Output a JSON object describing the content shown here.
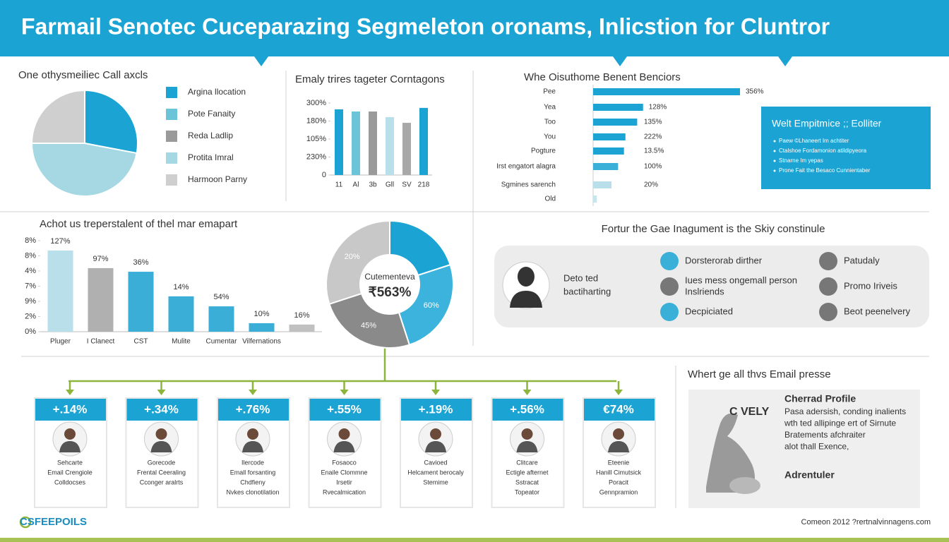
{
  "header": {
    "title": "Farmail Senotec Cuceparazing Segmeleton oronams, Inlicstion for Cluntror"
  },
  "chart_data": [
    {
      "type": "pie",
      "title": "One othysmeiliec Call axcls",
      "categories": [
        "Argina llocation",
        "Pote Fanaity",
        "Reda Ladlip",
        "Protita Imral",
        "Harmoon Parny"
      ],
      "values": [
        28,
        0,
        0,
        47,
        25
      ],
      "colors": [
        "#1ba3d4",
        "#6cc4d8",
        "#9a9a9a",
        "#a5d8e3",
        "#cfcfcf"
      ]
    },
    {
      "type": "bar",
      "title": "Emaly trires tageter Corntagons",
      "categories": [
        "11",
        "Al",
        "3b",
        "Gll",
        "SV",
        "218"
      ],
      "values": [
        3.65,
        3.53,
        3.53,
        3.22,
        2.9,
        3.73
      ],
      "colors": [
        "#1ba3d4",
        "#6cc4d8",
        "#9a9a9a",
        "#b9e0ea",
        "#a8a8a8",
        "#1ba3d4"
      ],
      "ylim": [
        0,
        4
      ],
      "yticks": [
        0,
        {
          "value": 1,
          "label": "230%"
        },
        {
          "value": 2,
          "label": "105%"
        },
        {
          "value": 3,
          "label": "180%"
        },
        {
          "value": 4,
          "label": "300%"
        }
      ]
    },
    {
      "type": "hbar",
      "title": "Whe Oisuthome Benent Benciors",
      "categories": [
        "Pee",
        "Yea",
        "Too",
        "You",
        "Pogture",
        "Irst engatort alagra",
        "Sgmines sarench",
        "Old"
      ],
      "values": [
        100,
        34,
        30,
        22,
        21,
        17,
        12.5,
        2.5
      ],
      "annotations": [
        "356%",
        "128%",
        "135%",
        "222%",
        "13.5%",
        "100%",
        "20%",
        null
      ],
      "colors": [
        "#1ba3d4",
        "#1ba3d4",
        "#1ba3d4",
        "#1ba3d4",
        "#1ba3d4",
        "#3ab0d8",
        "#b9e0ea",
        "#c8e4ec"
      ],
      "xlim": [
        0,
        100
      ]
    },
    {
      "type": "bar",
      "title": "Achot us treperstalent of thel mar emapart",
      "categories": [
        "Pluger",
        "I Clanect",
        "CST",
        "Mulite",
        "Cumentar",
        "Vilfernations",
        null
      ],
      "values": [
        5.35,
        4.19,
        3.95,
        2.33,
        1.67,
        0.56,
        0.47
      ],
      "annotations": [
        "127%",
        "97%",
        "36%",
        "14%",
        "54%",
        "10%",
        "16%"
      ],
      "colors": [
        "#b9e0ea",
        "#b0b0b0",
        "#3aaed6",
        "#3aaed6",
        "#3aaed6",
        "#3aaed6",
        "#c0c0c0"
      ],
      "ylim": [
        0,
        6
      ],
      "yticks": [
        {
          "value": 0,
          "label": "0%"
        },
        {
          "value": 1,
          "label": "2%"
        },
        {
          "value": 2,
          "label": "9%"
        },
        {
          "value": 3,
          "label": "7%"
        },
        {
          "value": 4,
          "label": "4%"
        },
        {
          "value": 5,
          "label": "8%"
        },
        {
          "value": 6,
          "label": "8%"
        }
      ]
    },
    {
      "type": "donut",
      "center_label": [
        "Cutementeva",
        "₹563%"
      ],
      "values": [
        20,
        25,
        25,
        30
      ],
      "annotations": [
        null,
        "60%",
        "45%",
        "20%"
      ],
      "colors": [
        "#1ba3d4",
        "#3bb3dc",
        "#8a8a8a",
        "#c8c8c8"
      ]
    }
  ],
  "sidebox": {
    "title": "Welt Empitmice ;; Eolliter",
    "items": [
      "Paew ©Lhaneert Im achtiter",
      "Ctalshoe Fordamonion atildipyeora",
      "Stnarne Im yepas",
      "Prone Fait the Besaco Cunnientaber"
    ]
  },
  "persona_section": {
    "title": "Fortur the Gae Inagument is the Skiy constinule",
    "persona": [
      "Deto ted",
      "bactiharting"
    ],
    "traits": [
      {
        "lines": [
          "Dorsterorab dirther"
        ],
        "color": "#3ab0d8"
      },
      {
        "lines": [
          "Iues mess ongemall person",
          "Inslriends"
        ],
        "color": "#777777"
      },
      {
        "lines": [
          "Decpiciated"
        ],
        "color": "#3ab0d8"
      },
      {
        "lines": [
          "Patudaly"
        ],
        "color": "#777777"
      },
      {
        "lines": [
          "Promo Iriveis"
        ],
        "color": "#777777"
      },
      {
        "lines": [
          "Beot peenelvery"
        ],
        "color": "#777777"
      }
    ]
  },
  "cards": [
    {
      "value": "+.14%",
      "lines": [
        "Sehcarte",
        "Email Crengiole",
        "Colldocses"
      ]
    },
    {
      "value": "+.34%",
      "lines": [
        "Gorecode",
        "Frental Ceeraling",
        "Cconger aralrts"
      ]
    },
    {
      "value": "+.76%",
      "lines": [
        "Ilercode",
        "Emall forsanting",
        "Chdfieny",
        "Nvkes clonotilation"
      ]
    },
    {
      "value": "+.55%",
      "lines": [
        "Fosaoco",
        "Enaile Clommne",
        "Irsetir",
        "Rvecalmication"
      ]
    },
    {
      "value": "+.19%",
      "lines": [
        "Cavioed",
        "Helcament berocaly",
        "Stemime"
      ]
    },
    {
      "value": "+.56%",
      "lines": [
        "Clitcare",
        "Ectigle afternet",
        "Sstracat",
        "Topeator"
      ]
    },
    {
      "value": "€74%",
      "lines": [
        "Eteenie",
        "Hanill Cimutsick",
        "Poracit",
        "Gennpramion"
      ]
    }
  ],
  "profile": {
    "heading": "Whert ge all thvs Email presse",
    "title": "Cherrad Profile",
    "logo_text": "C VELY",
    "body": [
      "Pasa adersish, conding inalients",
      "wth ted allipinge ert of Sirnute",
      "Bratements afchraiter",
      "alot thall Exence,"
    ],
    "footer": "Adrentuler"
  },
  "footer": {
    "logo": "CSFEEPOILS",
    "credit": "Comeon 2012 ?rertnalvinnagens.com"
  }
}
